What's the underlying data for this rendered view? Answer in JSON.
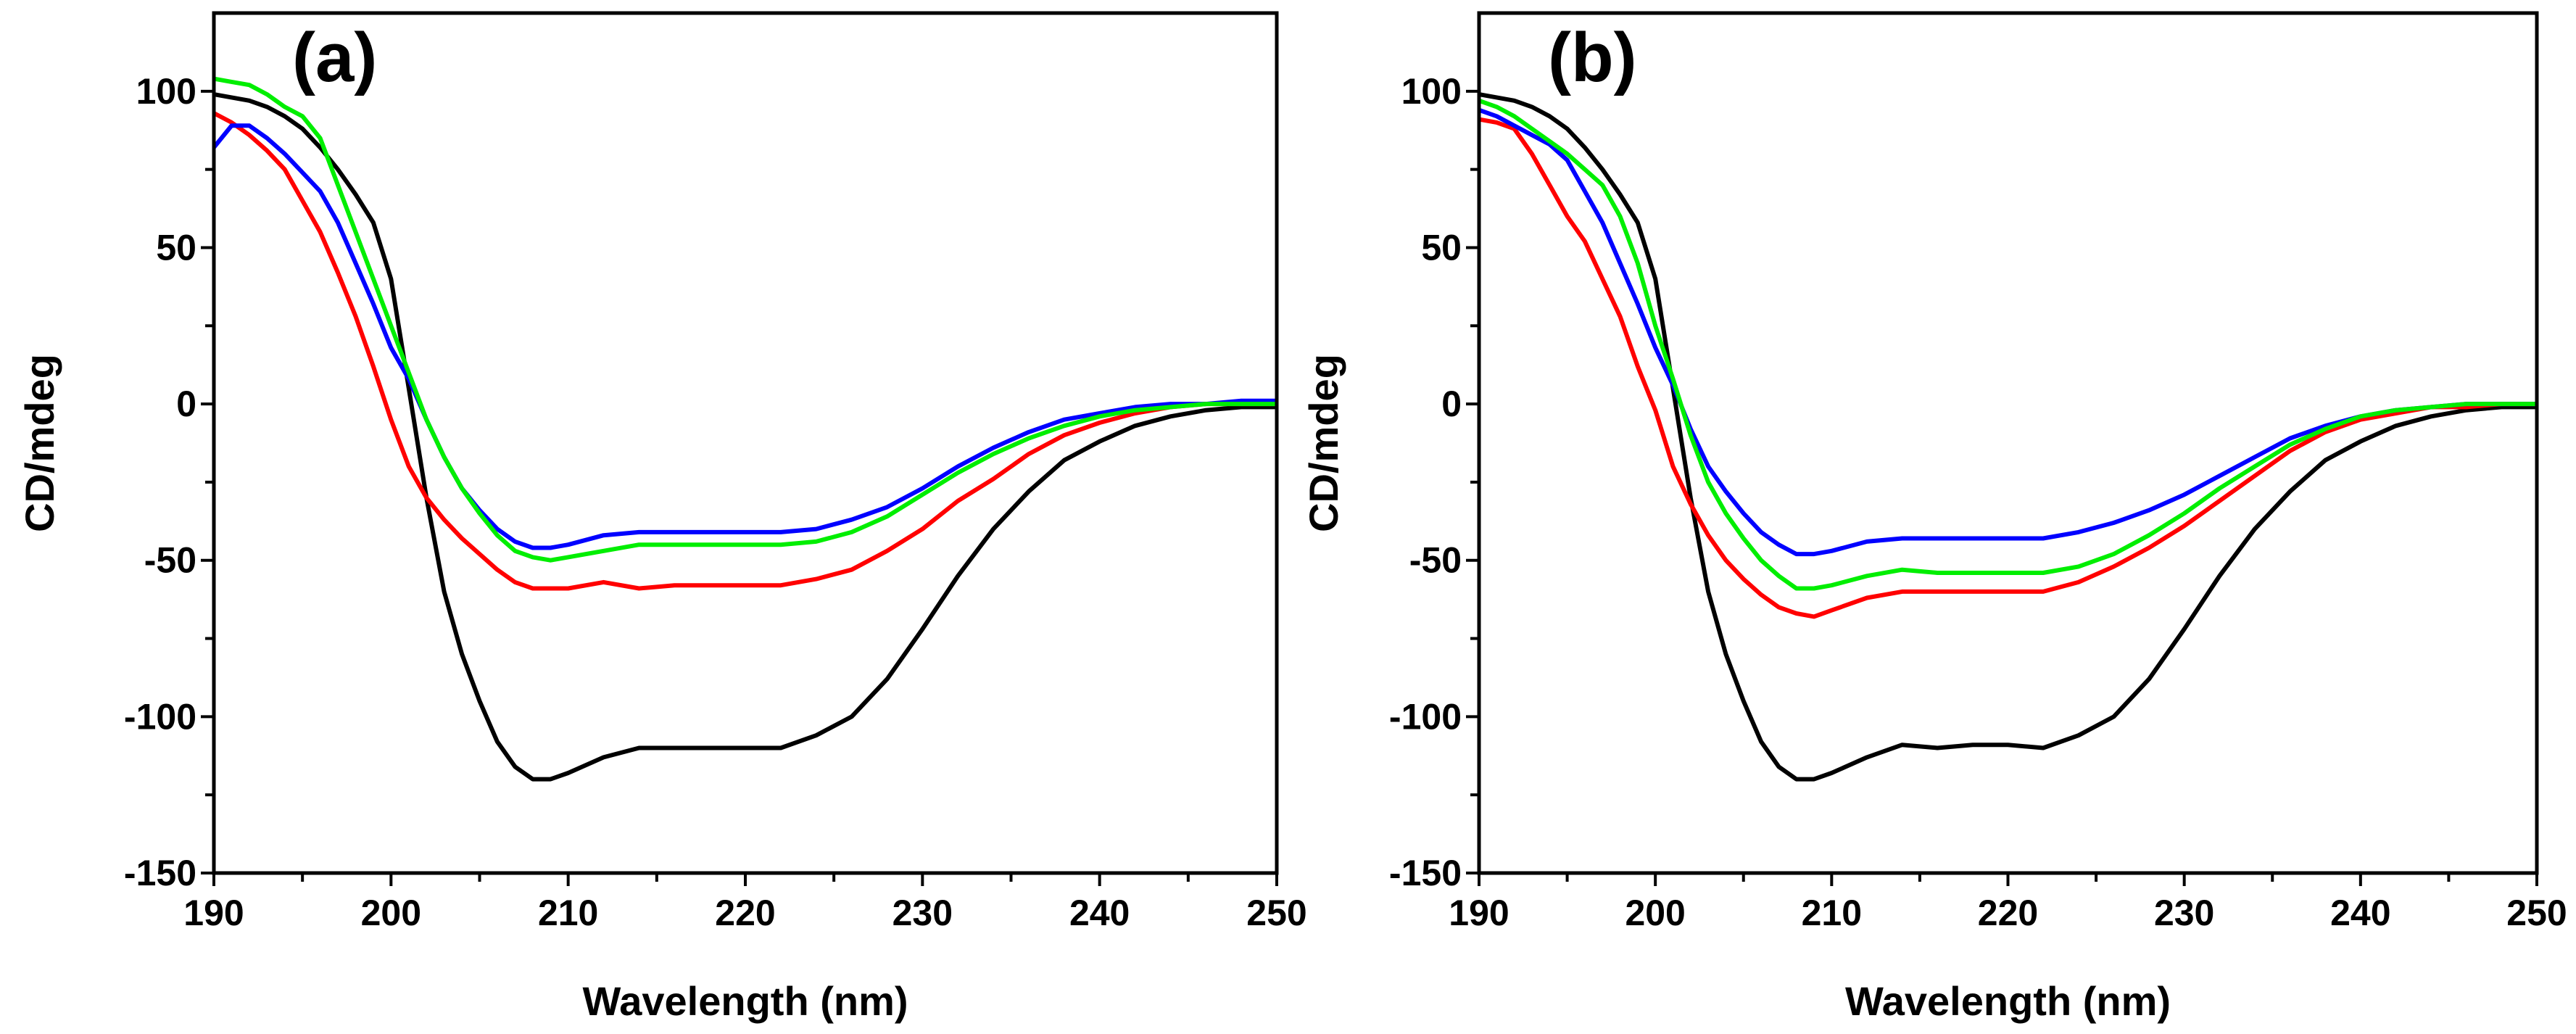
{
  "chart_data": [
    {
      "type": "line",
      "panel_label": "(a)",
      "xlabel": "Wavelength (nm)",
      "ylabel": "CD/mdeg",
      "xlim": [
        190,
        250
      ],
      "ylim": [
        -150,
        125
      ],
      "xticks": [
        190,
        200,
        210,
        220,
        230,
        240,
        250
      ],
      "yticks": [
        -150,
        -100,
        -50,
        0,
        50,
        100
      ],
      "grid": false,
      "x": [
        190,
        191,
        192,
        193,
        194,
        195,
        196,
        197,
        198,
        199,
        200,
        201,
        202,
        203,
        204,
        205,
        206,
        207,
        208,
        209,
        210,
        212,
        214,
        216,
        218,
        220,
        222,
        224,
        226,
        228,
        230,
        232,
        234,
        236,
        238,
        240,
        242,
        244,
        246,
        248,
        250
      ],
      "series": [
        {
          "name": "black",
          "color": "#000000",
          "values": [
            99,
            98,
            97,
            95,
            92,
            88,
            82,
            75,
            67,
            58,
            40,
            5,
            -30,
            -60,
            -80,
            -95,
            -108,
            -116,
            -120,
            -120,
            -118,
            -113,
            -110,
            -110,
            -110,
            -110,
            -110,
            -106,
            -100,
            -88,
            -72,
            -55,
            -40,
            -28,
            -18,
            -12,
            -7,
            -4,
            -2,
            -1,
            -1
          ]
        },
        {
          "name": "red",
          "color": "#ff0000",
          "values": [
            93,
            90,
            86,
            81,
            75,
            65,
            55,
            42,
            28,
            12,
            -5,
            -20,
            -30,
            -37,
            -43,
            -48,
            -53,
            -57,
            -59,
            -59,
            -59,
            -57,
            -59,
            -58,
            -58,
            -58,
            -58,
            -56,
            -53,
            -47,
            -40,
            -31,
            -24,
            -16,
            -10,
            -6,
            -3,
            -1,
            0,
            0,
            0
          ]
        },
        {
          "name": "blue",
          "color": "#0000ff",
          "values": [
            82,
            89,
            89,
            85,
            80,
            74,
            68,
            58,
            45,
            32,
            18,
            8,
            -5,
            -17,
            -27,
            -34,
            -40,
            -44,
            -46,
            -46,
            -45,
            -42,
            -41,
            -41,
            -41,
            -41,
            -41,
            -40,
            -37,
            -33,
            -27,
            -20,
            -14,
            -9,
            -5,
            -3,
            -1,
            0,
            0,
            1,
            1
          ]
        },
        {
          "name": "green",
          "color": "#00ee00",
          "values": [
            104,
            103,
            102,
            99,
            95,
            92,
            85,
            70,
            55,
            40,
            25,
            10,
            -5,
            -17,
            -27,
            -35,
            -42,
            -47,
            -49,
            -50,
            -49,
            -47,
            -45,
            -45,
            -45,
            -45,
            -45,
            -44,
            -41,
            -36,
            -29,
            -22,
            -16,
            -11,
            -7,
            -4,
            -2,
            -1,
            0,
            0,
            0
          ]
        }
      ]
    },
    {
      "type": "line",
      "panel_label": "(b)",
      "xlabel": "Wavelength (nm)",
      "ylabel": "CD/mdeg",
      "xlim": [
        190,
        250
      ],
      "ylim": [
        -150,
        125
      ],
      "xticks": [
        190,
        200,
        210,
        220,
        230,
        240,
        250
      ],
      "yticks": [
        -150,
        -100,
        -50,
        0,
        50,
        100
      ],
      "grid": false,
      "x": [
        190,
        191,
        192,
        193,
        194,
        195,
        196,
        197,
        198,
        199,
        200,
        201,
        202,
        203,
        204,
        205,
        206,
        207,
        208,
        209,
        210,
        212,
        214,
        216,
        218,
        220,
        222,
        224,
        226,
        228,
        230,
        232,
        234,
        236,
        238,
        240,
        242,
        244,
        246,
        248,
        250
      ],
      "series": [
        {
          "name": "black",
          "color": "#000000",
          "values": [
            99,
            98,
            97,
            95,
            92,
            88,
            82,
            75,
            67,
            58,
            40,
            5,
            -30,
            -60,
            -80,
            -95,
            -108,
            -116,
            -120,
            -120,
            -118,
            -113,
            -109,
            -110,
            -109,
            -109,
            -110,
            -106,
            -100,
            -88,
            -72,
            -55,
            -40,
            -28,
            -18,
            -12,
            -7,
            -4,
            -2,
            -1,
            -1
          ]
        },
        {
          "name": "red",
          "color": "#ff0000",
          "values": [
            91,
            90,
            88,
            80,
            70,
            60,
            52,
            40,
            28,
            12,
            -2,
            -20,
            -32,
            -42,
            -50,
            -56,
            -61,
            -65,
            -67,
            -68,
            -66,
            -62,
            -60,
            -60,
            -60,
            -60,
            -60,
            -57,
            -52,
            -46,
            -39,
            -31,
            -23,
            -15,
            -9,
            -5,
            -3,
            -1,
            -1,
            0,
            0
          ]
        },
        {
          "name": "blue",
          "color": "#0000ff",
          "values": [
            94,
            92,
            89,
            86,
            83,
            78,
            68,
            58,
            45,
            32,
            18,
            6,
            -8,
            -20,
            -28,
            -35,
            -41,
            -45,
            -48,
            -48,
            -47,
            -44,
            -43,
            -43,
            -43,
            -43,
            -43,
            -41,
            -38,
            -34,
            -29,
            -23,
            -17,
            -11,
            -7,
            -4,
            -2,
            -1,
            0,
            0,
            0
          ]
        },
        {
          "name": "green",
          "color": "#00ee00",
          "values": [
            97,
            95,
            92,
            88,
            84,
            80,
            75,
            70,
            60,
            45,
            25,
            8,
            -10,
            -25,
            -35,
            -43,
            -50,
            -55,
            -59,
            -59,
            -58,
            -55,
            -53,
            -54,
            -54,
            -54,
            -54,
            -52,
            -48,
            -42,
            -35,
            -27,
            -20,
            -13,
            -8,
            -4,
            -2,
            -1,
            0,
            0,
            0
          ]
        }
      ]
    }
  ]
}
